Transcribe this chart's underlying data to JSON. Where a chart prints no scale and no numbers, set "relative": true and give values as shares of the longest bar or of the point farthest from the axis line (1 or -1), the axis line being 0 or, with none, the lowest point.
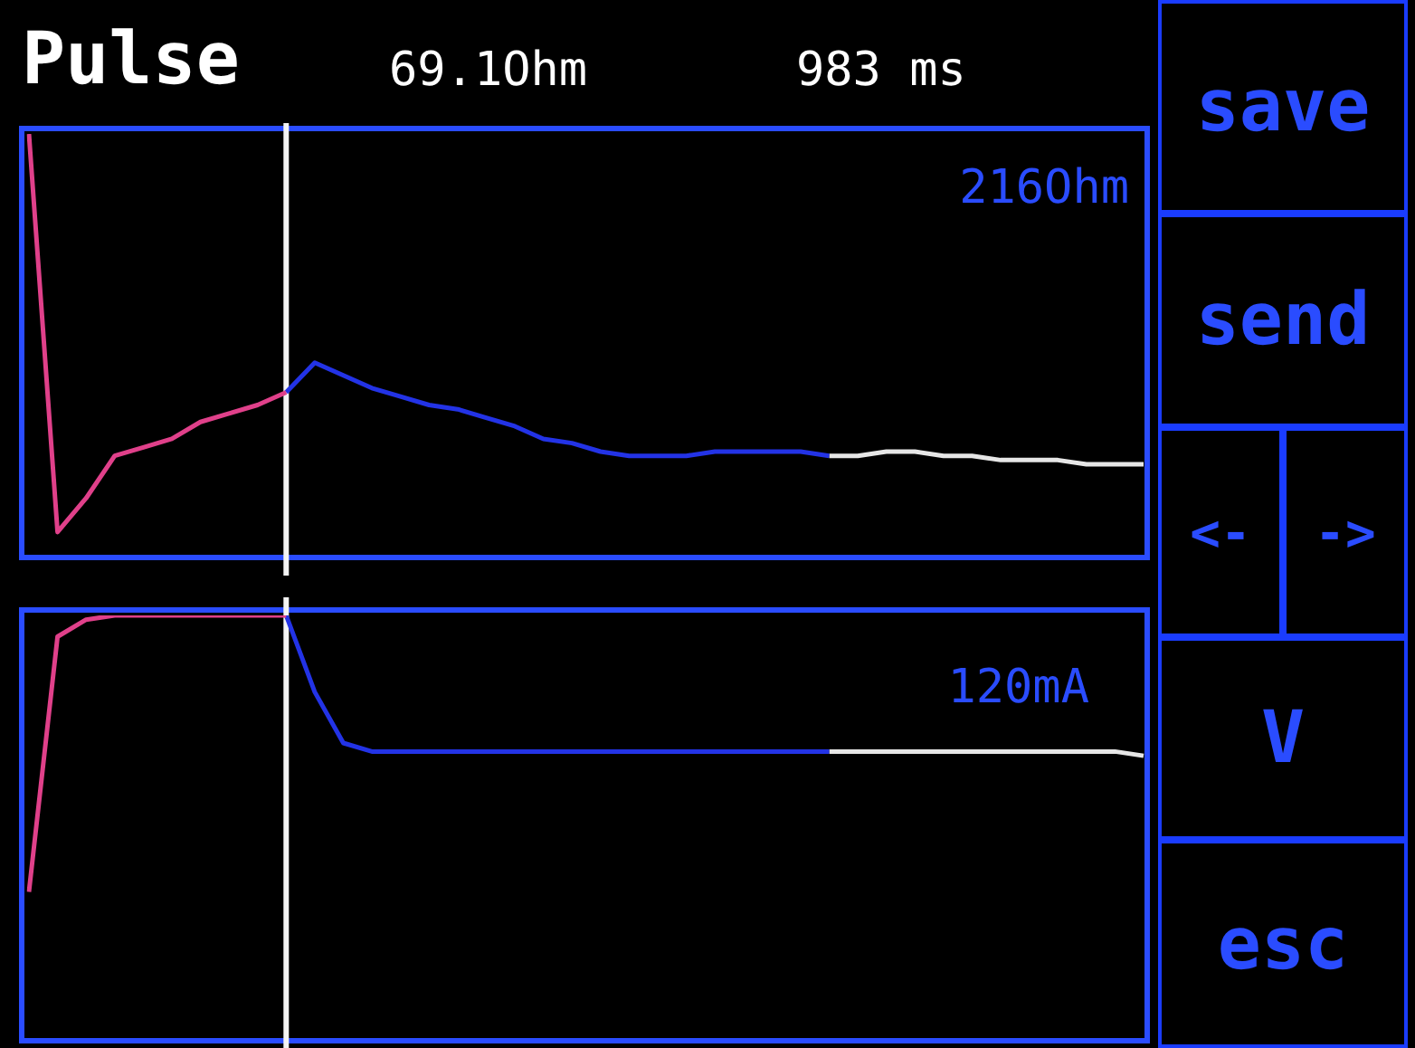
{
  "chart_data": [
    {
      "type": "line",
      "title": "Pulse",
      "relative": true,
      "tick_labels": false,
      "legend": false,
      "marker": "none",
      "line_style": "solid",
      "annotations": [
        "69.1Ohm",
        "983 ms",
        "216Ohm"
      ],
      "categories": [
        null,
        null,
        null,
        null,
        null,
        null,
        null,
        null,
        null,
        null,
        null,
        null,
        null,
        null,
        null,
        null,
        null,
        null,
        null,
        null,
        null,
        null,
        null,
        null,
        null,
        null,
        null,
        null,
        null,
        null,
        null,
        null,
        null,
        null,
        null,
        null,
        null,
        null,
        null,
        null
      ],
      "series": [
        {
          "color": "#e0408a",
          "values": [
            1.0,
            0.06,
            0.14,
            0.24,
            0.26,
            0.28,
            0.32,
            0.34,
            0.36,
            0.39,
            null,
            null,
            null,
            null,
            null,
            null,
            null,
            null,
            null,
            null,
            null,
            null,
            null,
            null,
            null,
            null,
            null,
            null,
            null,
            null,
            null,
            null,
            null,
            null,
            null,
            null,
            null,
            null,
            null,
            null
          ]
        },
        {
          "color": "#2333e6",
          "values": [
            null,
            null,
            null,
            null,
            null,
            null,
            null,
            null,
            null,
            0.39,
            0.46,
            0.43,
            0.4,
            0.38,
            0.36,
            0.35,
            0.33,
            0.31,
            0.28,
            0.27,
            0.25,
            0.24,
            0.24,
            0.24,
            0.25,
            0.25,
            0.25,
            0.25,
            0.24,
            null,
            null,
            null,
            null,
            null,
            null,
            null,
            null,
            null,
            null,
            null
          ]
        },
        {
          "color": "#e6e6e6",
          "values": [
            null,
            null,
            null,
            null,
            null,
            null,
            null,
            null,
            null,
            null,
            null,
            null,
            null,
            null,
            null,
            null,
            null,
            null,
            null,
            null,
            null,
            null,
            null,
            null,
            null,
            null,
            null,
            null,
            0.24,
            0.24,
            0.25,
            0.25,
            0.24,
            0.24,
            0.23,
            0.23,
            0.23,
            0.22,
            0.22,
            0.22
          ]
        }
      ]
    },
    {
      "type": "line",
      "relative": true,
      "tick_labels": false,
      "legend": false,
      "marker": "none",
      "line_style": "solid",
      "annotations": [
        "120mA"
      ],
      "categories": [
        null,
        null,
        null,
        null,
        null,
        null,
        null,
        null,
        null,
        null,
        null,
        null,
        null,
        null,
        null,
        null,
        null,
        null,
        null,
        null,
        null,
        null,
        null,
        null,
        null,
        null,
        null,
        null,
        null,
        null,
        null,
        null,
        null,
        null,
        null,
        null,
        null,
        null,
        null,
        null
      ],
      "series": [
        {
          "color": "#e0408a",
          "values": [
            0.35,
            0.95,
            0.99,
            1.0,
            1.0,
            1.0,
            1.0,
            1.0,
            1.0,
            1.0,
            null,
            null,
            null,
            null,
            null,
            null,
            null,
            null,
            null,
            null,
            null,
            null,
            null,
            null,
            null,
            null,
            null,
            null,
            null,
            null,
            null,
            null,
            null,
            null,
            null,
            null,
            null,
            null,
            null,
            null
          ]
        },
        {
          "color": "#2333e6",
          "values": [
            null,
            null,
            null,
            null,
            null,
            null,
            null,
            null,
            null,
            1.0,
            0.82,
            0.7,
            0.68,
            0.68,
            0.68,
            0.68,
            0.68,
            0.68,
            0.68,
            0.68,
            0.68,
            0.68,
            0.68,
            0.68,
            0.68,
            0.68,
            0.68,
            0.68,
            0.68,
            null,
            null,
            null,
            null,
            null,
            null,
            null,
            null,
            null,
            null,
            null
          ]
        },
        {
          "color": "#e6e6e6",
          "values": [
            null,
            null,
            null,
            null,
            null,
            null,
            null,
            null,
            null,
            null,
            null,
            null,
            null,
            null,
            null,
            null,
            null,
            null,
            null,
            null,
            null,
            null,
            null,
            null,
            null,
            null,
            null,
            null,
            0.68,
            0.68,
            0.68,
            0.68,
            0.68,
            0.68,
            0.68,
            0.68,
            0.68,
            0.68,
            0.68,
            0.67
          ]
        }
      ]
    },
    {
      "type": "other",
      "annotations": [
        "save",
        "send",
        "<-",
        "->",
        "V",
        "esc"
      ]
    }
  ]
}
